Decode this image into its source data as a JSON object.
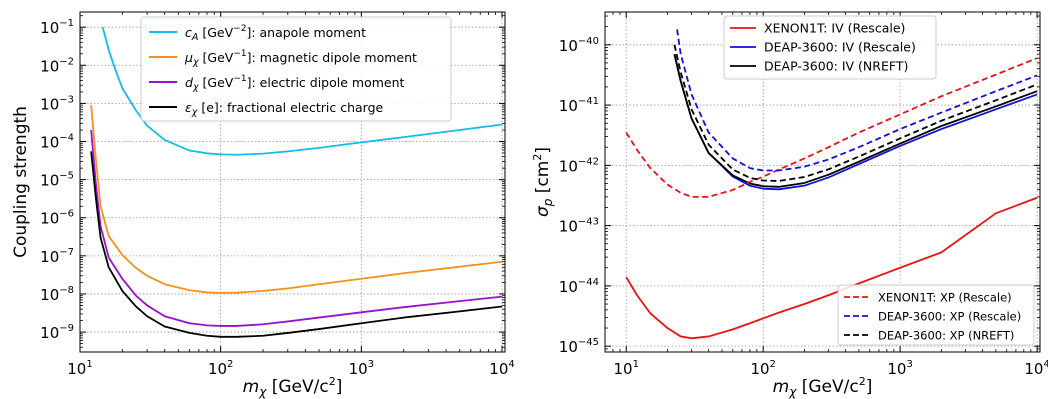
{
  "chart_data": [
    {
      "type": "line",
      "xlabel_base": "m",
      "xlabel_sub": "χ",
      "xlabel_unit": " [GeV/c",
      "xlabel_unit_sup": "2",
      "xlabel_unit_end": "]",
      "ylabel": "Coupling strength",
      "xscale": "log",
      "yscale": "log",
      "xlim": [
        10,
        10500
      ],
      "ylim": [
        3e-10,
        0.25
      ],
      "grid": true,
      "legend_position": "top-center",
      "x_ticks": [
        {
          "value": 10,
          "mant": "10",
          "exp": "1"
        },
        {
          "value": 100,
          "mant": "10",
          "exp": "2"
        },
        {
          "value": 1000,
          "mant": "10",
          "exp": "3"
        },
        {
          "value": 10000,
          "mant": "10",
          "exp": "4"
        }
      ],
      "y_ticks": [
        {
          "value": 1e-09,
          "mant": "10",
          "exp": "−9"
        },
        {
          "value": 1e-08,
          "mant": "10",
          "exp": "−8"
        },
        {
          "value": 1e-07,
          "mant": "10",
          "exp": "−7"
        },
        {
          "value": 1e-06,
          "mant": "10",
          "exp": "−6"
        },
        {
          "value": 1e-05,
          "mant": "10",
          "exp": "−5"
        },
        {
          "value": 0.0001,
          "mant": "10",
          "exp": "−4"
        },
        {
          "value": 0.001,
          "mant": "10",
          "exp": "−3"
        },
        {
          "value": 0.01,
          "mant": "10",
          "exp": "−2"
        },
        {
          "value": 0.1,
          "mant": "10",
          "exp": "−1"
        }
      ],
      "series": [
        {
          "sym": "c",
          "sub": "A",
          "pre": " [GeV",
          "sup": "−2",
          "post": "]: anapole moment",
          "color": "#12bcec",
          "dash": "solid",
          "x": [
            14.5,
            16,
            18,
            20,
            25,
            30,
            40,
            60,
            80,
            100,
            130,
            200,
            300,
            500,
            1000,
            2000,
            5000,
            10000
          ],
          "y": [
            0.1,
            0.025,
            0.007,
            0.0025,
            0.00065,
            0.00026,
            0.00011,
            5.8e-05,
            4.9e-05,
            4.6e-05,
            4.5e-05,
            4.8e-05,
            5.5e-05,
            6.8e-05,
            9.5e-05,
            0.00013,
            0.0002,
            0.00028
          ]
        },
        {
          "sym": "μ",
          "sub": "χ",
          "pre": " [GeV",
          "sup": "−1",
          "post": "]: magnetic dipole moment",
          "color": "#f7901e",
          "dash": "solid",
          "x": [
            12,
            13,
            14,
            16,
            20,
            25,
            30,
            40,
            60,
            80,
            100,
            130,
            200,
            300,
            500,
            1000,
            2000,
            5000,
            10000
          ],
          "y": [
            0.0009,
            3e-05,
            2e-06,
            3.3e-07,
            1.05e-07,
            4.8e-08,
            3e-08,
            1.8e-08,
            1.25e-08,
            1.1e-08,
            1.07e-08,
            1.08e-08,
            1.2e-08,
            1.4e-08,
            1.8e-08,
            2.5e-08,
            3.5e-08,
            5.2e-08,
            7e-08
          ]
        },
        {
          "sym": "d",
          "sub": "χ",
          "pre": " [GeV",
          "sup": "−1",
          "post": "]: electric dipole moment",
          "color": "#9b10cf",
          "dash": "solid",
          "x": [
            12,
            13,
            14,
            16,
            20,
            25,
            30,
            40,
            60,
            80,
            100,
            130,
            200,
            300,
            500,
            1000,
            2000,
            5000,
            10000
          ],
          "y": [
            0.0002,
            7e-06,
            6e-07,
            9e-08,
            2.5e-08,
            9e-09,
            5e-09,
            2.6e-09,
            1.7e-09,
            1.5e-09,
            1.45e-09,
            1.45e-09,
            1.6e-09,
            1.9e-09,
            2.4e-09,
            3.3e-09,
            4.5e-09,
            6.5e-09,
            8.5e-09
          ]
        },
        {
          "sym": "ε",
          "sub": "χ",
          "pre": " [e]: fractional electric charge",
          "sup": "",
          "post": "",
          "color": "#000000",
          "dash": "solid",
          "x": [
            12,
            13,
            14,
            16,
            20,
            25,
            30,
            40,
            60,
            80,
            100,
            130,
            200,
            300,
            500,
            1000,
            2000,
            5000,
            10000
          ],
          "y": [
            5.5e-05,
            3e-06,
            3e-07,
            5e-08,
            1.2e-08,
            4.7e-09,
            2.6e-09,
            1.4e-09,
            9.5e-10,
            8e-10,
            7.5e-10,
            7.5e-10,
            8e-10,
            9.5e-10,
            1.2e-09,
            1.7e-09,
            2.4e-09,
            3.5e-09,
            4.7e-09
          ]
        }
      ]
    },
    {
      "type": "line",
      "xlabel_base": "m",
      "xlabel_sub": "χ",
      "xlabel_unit": " [GeV/c",
      "xlabel_unit_sup": "2",
      "xlabel_unit_end": "]",
      "ylabel_base": "σ",
      "ylabel_sub": "p",
      "ylabel_unit": " [cm",
      "ylabel_unit_sup": "2",
      "ylabel_unit_end": "]",
      "xscale": "log",
      "yscale": "log",
      "xlim": [
        7,
        10500
      ],
      "ylim": [
        8e-46,
        3.5e-40
      ],
      "grid": true,
      "legend_positions": [
        "top-center",
        "bottom-right"
      ],
      "x_ticks": [
        {
          "value": 10,
          "mant": "10",
          "exp": "1"
        },
        {
          "value": 100,
          "mant": "10",
          "exp": "2"
        },
        {
          "value": 1000,
          "mant": "10",
          "exp": "3"
        },
        {
          "value": 10000,
          "mant": "10",
          "exp": "4"
        }
      ],
      "y_ticks": [
        {
          "value": 1e-45,
          "mant": "10",
          "exp": "−45"
        },
        {
          "value": 1e-44,
          "mant": "10",
          "exp": "−44"
        },
        {
          "value": 1e-43,
          "mant": "10",
          "exp": "−43"
        },
        {
          "value": 1e-42,
          "mant": "10",
          "exp": "−42"
        },
        {
          "value": 1e-41,
          "mant": "10",
          "exp": "−41"
        },
        {
          "value": 1e-40,
          "mant": "10",
          "exp": "−40"
        }
      ],
      "series": [
        {
          "name": "XENON1T: IV (Rescale)",
          "color": "#ee1111",
          "dash": "solid",
          "legend": 0,
          "x": [
            10,
            20,
            40
          ],
          "y": [
            0,
            0,
            0
          ]
        },
        {
          "name": "DEAP-3600: IV (Rescale)",
          "color": "#1111dd",
          "dash": "solid",
          "legend": 0,
          "x": [
            22.5,
            25,
            30,
            40,
            60,
            80,
            100,
            130,
            200,
            300,
            500,
            1000,
            2000,
            5000,
            10000
          ],
          "y": [
            7e-41,
            2.5e-41,
            6e-42,
            1.6e-42,
            6.5e-43,
            4.6e-43,
            4.1e-43,
            4e-43,
            4.6e-43,
            6.3e-43,
            1.05e-42,
            2.1e-42,
            4e-42,
            8.5e-42,
            1.5e-41
          ]
        },
        {
          "name": "DEAP-3600: IV (NREFT)",
          "color": "#000000",
          "dash": "solid",
          "legend": 0,
          "x": [
            22.5,
            25,
            30,
            40,
            60,
            80,
            100,
            130,
            200,
            300,
            500,
            1000,
            2000,
            5000,
            10000
          ],
          "y": [
            7e-41,
            2.5e-41,
            6e-42,
            1.6e-42,
            6.8e-43,
            5e-43,
            4.5e-43,
            4.4e-43,
            5.1e-43,
            7e-43,
            1.15e-42,
            2.3e-42,
            4.5e-42,
            9.5e-42,
            1.7e-41
          ]
        },
        {
          "name": "XENON1T: XP (Rescale)",
          "color": "#ee1111",
          "dash": "dashed",
          "legend": 1,
          "x": [
            10,
            12,
            15,
            20,
            25,
            30,
            40,
            60,
            80,
            100,
            130,
            200,
            300,
            500,
            1000,
            2000,
            5000,
            10000
          ],
          "y": [
            3.5e-42,
            1.8e-42,
            9e-43,
            4.8e-43,
            3.5e-43,
            3e-43,
            3e-43,
            3.9e-43,
            5.3e-43,
            6.5e-43,
            8.5e-43,
            1.3e-42,
            2e-42,
            3.5e-42,
            7e-42,
            1.4e-41,
            3.2e-41,
            6e-41
          ]
        },
        {
          "name": "DEAP-3600: XP (Rescale)",
          "color": "#1111dd",
          "dash": "dashed",
          "legend": 1,
          "x": [
            23.5,
            25,
            30,
            40,
            60,
            80,
            100,
            130,
            200,
            300,
            500,
            1000,
            2000,
            5000,
            10000
          ],
          "y": [
            1.8e-40,
            7e-41,
            1.5e-41,
            3.5e-42,
            1.3e-42,
            9e-43,
            8.2e-43,
            8.2e-43,
            9.5e-43,
            1.25e-42,
            2e-42,
            4e-42,
            7.5e-42,
            1.7e-41,
            3.1e-41
          ]
        },
        {
          "name": "DEAP-3600: XP (NREFT)",
          "color": "#000000",
          "dash": "dashed",
          "legend": 1,
          "x": [
            22.5,
            25,
            30,
            40,
            60,
            80,
            100,
            130,
            200,
            300,
            500,
            1000,
            2000,
            5000,
            10000
          ],
          "y": [
            1e-40,
            3.5e-41,
            8.5e-42,
            2.2e-42,
            8.5e-43,
            6.2e-43,
            5.6e-43,
            5.5e-43,
            6.4e-43,
            8.6e-43,
            1.4e-42,
            2.8e-42,
            5.5e-42,
            1.2e-41,
            2.2e-41
          ]
        },
        {
          "name": "",
          "color": "#ee1111",
          "dash": "solid",
          "legend": -1,
          "x": [
            10,
            12,
            15,
            20,
            25,
            30,
            40,
            60,
            80,
            100,
            130,
            200,
            300,
            500,
            1000,
            2000,
            5000,
            10000
          ],
          "y": [
            1.4e-44,
            7e-45,
            3.5e-45,
            2e-45,
            1.45e-45,
            1.35e-45,
            1.45e-45,
            1.9e-45,
            2.4e-45,
            2.9e-45,
            3.6e-45,
            5e-45,
            7e-45,
            1.1e-44,
            2e-44,
            3.6e-44,
            1.6e-43,
            2.9e-43
          ]
        }
      ]
    }
  ]
}
